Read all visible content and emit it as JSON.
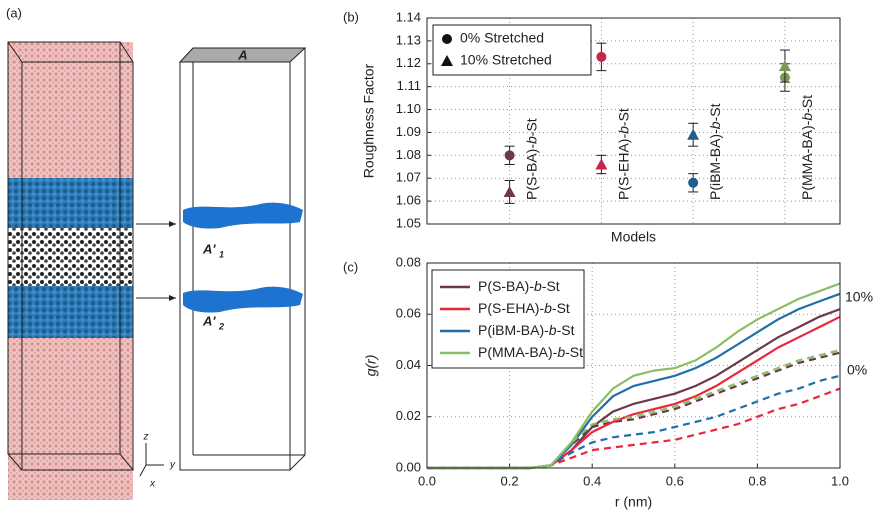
{
  "panel_a": {
    "label": "(a)",
    "top_label": "A",
    "surface_labels": [
      {
        "main": "A'",
        "sub": "1"
      },
      {
        "main": "A'",
        "sub": "2"
      }
    ],
    "axes": [
      "z",
      "y",
      "x"
    ]
  },
  "chart_data": [
    {
      "type": "errorscatter",
      "panel_label": "(b)",
      "x_label": "Models",
      "y_label": "Roughness Factor",
      "categories": [
        "P(S-BA)-b-St",
        "P(S-EHA)-b-St",
        "P(iBM-BA)-b-St",
        "P(MMA-BA)-b-St"
      ],
      "category_colors": [
        "#6b3a4a",
        "#c8254a",
        "#1f5f8a",
        "#7a9a52"
      ],
      "series": [
        {
          "name": "0% Stretched",
          "marker": "circle",
          "color": "#111111",
          "values": [
            1.08,
            1.123,
            1.068,
            1.114
          ],
          "errors": [
            0.004,
            0.006,
            0.004,
            0.006
          ]
        },
        {
          "name": "10% Stretched",
          "marker": "triangle",
          "color": "#111111",
          "values": [
            1.064,
            1.076,
            1.089,
            1.119
          ],
          "errors": [
            0.005,
            0.004,
            0.005,
            0.007
          ]
        }
      ],
      "ylim": [
        1.05,
        1.14
      ],
      "yticks": [
        {
          "value": 1.05,
          "label": "1.05"
        },
        1.06,
        1.07,
        1.08,
        1.09,
        {
          "value": 1.1,
          "label": "1.10"
        },
        1.11,
        1.12,
        1.13,
        1.14
      ],
      "grid": true,
      "legend": "upper-left"
    },
    {
      "type": "line",
      "panel_label": "(c)",
      "x_label": "r (nm)",
      "y_label": "g(r)",
      "x": [
        0,
        0.05,
        0.1,
        0.15,
        0.2,
        0.25,
        0.3,
        0.35,
        0.4,
        0.45,
        0.5,
        0.55,
        0.6,
        0.65,
        0.7,
        0.75,
        0.8,
        0.85,
        0.9,
        0.95,
        1.0
      ],
      "right_labels": [
        "10%",
        "0%"
      ],
      "series": [
        {
          "name": "P(S-BA)-b-St",
          "color": "#6b3a4a",
          "values": [
            0,
            0,
            0,
            0,
            0,
            0,
            0.001,
            0.007,
            0.016,
            0.022,
            0.025,
            0.027,
            0.029,
            0.032,
            0.036,
            0.041,
            0.046,
            0.051,
            0.055,
            0.059,
            0.062
          ],
          "values_0": [
            0,
            0,
            0,
            0,
            0,
            0,
            0.001,
            0.009,
            0.016,
            0.018,
            0.019,
            0.021,
            0.023,
            0.026,
            0.029,
            0.032,
            0.035,
            0.038,
            0.041,
            0.043,
            0.045
          ]
        },
        {
          "name": "P(S-EHA)-b-St",
          "color": "#e8283f",
          "values": [
            0,
            0,
            0,
            0,
            0,
            0,
            0.001,
            0.007,
            0.014,
            0.018,
            0.021,
            0.023,
            0.025,
            0.028,
            0.032,
            0.037,
            0.042,
            0.047,
            0.051,
            0.055,
            0.059
          ],
          "values_0": [
            0,
            0,
            0,
            0,
            0,
            0,
            0.001,
            0.004,
            0.007,
            0.008,
            0.009,
            0.01,
            0.011,
            0.013,
            0.015,
            0.017,
            0.02,
            0.023,
            0.025,
            0.028,
            0.031
          ]
        },
        {
          "name": "P(iBM-BA)-b-St",
          "color": "#1f6fa8",
          "values": [
            0,
            0,
            0,
            0,
            0,
            0,
            0.001,
            0.009,
            0.02,
            0.028,
            0.032,
            0.034,
            0.036,
            0.039,
            0.043,
            0.048,
            0.053,
            0.058,
            0.062,
            0.065,
            0.068
          ],
          "values_0": [
            0,
            0,
            0,
            0,
            0,
            0,
            0.001,
            0.006,
            0.01,
            0.012,
            0.013,
            0.014,
            0.016,
            0.018,
            0.02,
            0.023,
            0.026,
            0.029,
            0.031,
            0.034,
            0.036
          ]
        },
        {
          "name": "P(MMA-BA)-b-St",
          "color": "#8bbf63",
          "values": [
            0,
            0,
            0,
            0,
            0,
            0,
            0.001,
            0.01,
            0.022,
            0.031,
            0.036,
            0.038,
            0.039,
            0.042,
            0.047,
            0.053,
            0.058,
            0.062,
            0.066,
            0.069,
            0.072
          ],
          "values_0": [
            0,
            0,
            0,
            0,
            0,
            0,
            0.001,
            0.01,
            0.017,
            0.019,
            0.02,
            0.022,
            0.024,
            0.027,
            0.03,
            0.033,
            0.036,
            0.039,
            0.042,
            0.044,
            0.046
          ]
        }
      ],
      "xlim": [
        0,
        1
      ],
      "xticks": [
        {
          "value": 0,
          "label": "0.0"
        },
        0.2,
        0.4,
        0.6,
        0.8,
        {
          "value": 1,
          "label": "1.0"
        }
      ],
      "ylim": [
        0,
        0.08
      ],
      "yticks": [
        {
          "value": 0,
          "label": "0.00"
        },
        0.02,
        0.04,
        0.06,
        0.08
      ],
      "grid": true,
      "legend": "upper-left"
    }
  ]
}
